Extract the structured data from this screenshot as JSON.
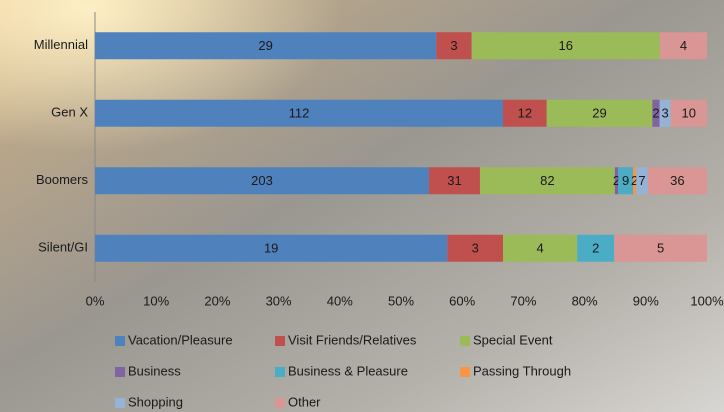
{
  "chart_data": {
    "type": "stacked_bar_100",
    "categories": [
      "Millennial",
      "Gen X",
      "Boomers",
      "Silent/GI"
    ],
    "series": [
      {
        "name": "Vacation/Pleasure",
        "color": "#4f81bd",
        "values": [
          29,
          112,
          203,
          19
        ]
      },
      {
        "name": "Visit Friends/Relatives",
        "color": "#c0504d",
        "values": [
          3,
          12,
          31,
          3
        ]
      },
      {
        "name": "Special Event",
        "color": "#9bbb59",
        "values": [
          16,
          29,
          82,
          4
        ]
      },
      {
        "name": "Business",
        "color": "#8064a2",
        "values": [
          null,
          2,
          2,
          null
        ]
      },
      {
        "name": "Business & Pleasure",
        "color": "#4bacc6",
        "values": [
          null,
          null,
          9,
          2
        ]
      },
      {
        "name": "Passing Through",
        "color": "#f79646",
        "values": [
          null,
          null,
          2,
          null
        ]
      },
      {
        "name": "Shopping",
        "color": "#95b3d7",
        "values": [
          null,
          3,
          7,
          null
        ]
      },
      {
        "name": "Other",
        "color": "#d99694",
        "values": [
          4,
          10,
          36,
          5
        ]
      }
    ],
    "xlim": [
      0,
      100
    ],
    "xticks": [
      {
        "value": 0,
        "label": "0%"
      },
      {
        "value": 10,
        "label": "10%"
      },
      {
        "value": 20,
        "label": "20%"
      },
      {
        "value": 30,
        "label": "30%"
      },
      {
        "value": 40,
        "label": "40%"
      },
      {
        "value": 50,
        "label": "50%"
      },
      {
        "value": 60,
        "label": "60%"
      },
      {
        "value": 70,
        "label": "70%"
      },
      {
        "value": 80,
        "label": "80%"
      },
      {
        "value": 90,
        "label": "90%"
      },
      {
        "value": 100,
        "label": "100%"
      }
    ],
    "legend": "bottom"
  }
}
